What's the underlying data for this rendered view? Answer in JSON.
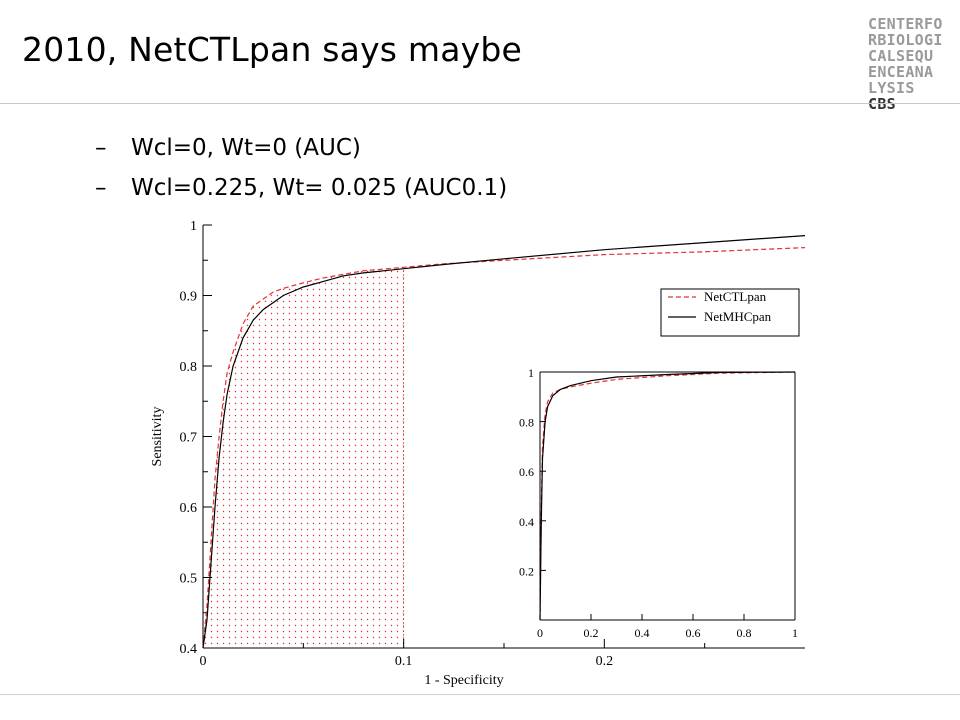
{
  "slide": {
    "title": "2010, NetCTLpan says maybe",
    "bullets": [
      {
        "dash": "–",
        "text": "Wcl=0, Wt=0 (AUC)"
      },
      {
        "dash": "–",
        "text": "Wcl=0.225, Wt= 0.025 (AUC0.1)"
      }
    ]
  },
  "logo": {
    "lines": [
      "CENTERFO",
      "RBIOLOGI",
      "CALSEQU",
      "ENCEANA"
    ],
    "last_line_prefix": "LYSIS",
    "last_line_brand": "CBS"
  },
  "chart_data": [
    {
      "type": "line",
      "xlabel": "1 - Specificity",
      "ylabel": "Sensitivity",
      "xlim": [
        0,
        0.3
      ],
      "ylim": [
        0.4,
        1.0
      ],
      "x_ticks": [
        0,
        0.1,
        0.2
      ],
      "x_tick_labels": [
        "0",
        "0.1",
        "0.2"
      ],
      "y_ticks": [
        0.4,
        0.5,
        0.6,
        0.7,
        0.8,
        0.9,
        1.0
      ],
      "y_tick_labels": [
        "0.4",
        "0.5",
        "0.6",
        "0.7",
        "0.8",
        "0.9",
        "1"
      ],
      "shaded_region": {
        "x_from": 0,
        "x_to": 0.1,
        "series": "NetCTLpan",
        "color": "#e53030"
      },
      "legend_position": "right",
      "series": [
        {
          "name": "NetCTLpan",
          "color": "#e53030",
          "style": "dashed",
          "x": [
            0.0,
            0.002,
            0.004,
            0.006,
            0.008,
            0.01,
            0.012,
            0.015,
            0.02,
            0.025,
            0.03,
            0.035,
            0.04,
            0.05,
            0.06,
            0.07,
            0.08,
            0.1,
            0.12,
            0.15,
            0.2,
            0.25,
            0.3
          ],
          "y": [
            0.4,
            0.46,
            0.55,
            0.64,
            0.7,
            0.75,
            0.79,
            0.82,
            0.86,
            0.885,
            0.895,
            0.905,
            0.91,
            0.918,
            0.925,
            0.93,
            0.935,
            0.94,
            0.945,
            0.95,
            0.958,
            0.962,
            0.968
          ]
        },
        {
          "name": "NetMHCpan",
          "color": "#000000",
          "style": "solid",
          "x": [
            0.0,
            0.002,
            0.004,
            0.006,
            0.008,
            0.01,
            0.012,
            0.015,
            0.02,
            0.025,
            0.03,
            0.035,
            0.04,
            0.05,
            0.06,
            0.07,
            0.08,
            0.1,
            0.12,
            0.15,
            0.2,
            0.25,
            0.3
          ],
          "y": [
            0.4,
            0.44,
            0.52,
            0.6,
            0.67,
            0.72,
            0.76,
            0.8,
            0.84,
            0.865,
            0.88,
            0.89,
            0.9,
            0.912,
            0.92,
            0.928,
            0.932,
            0.938,
            0.944,
            0.952,
            0.965,
            0.975,
            0.985
          ]
        }
      ]
    },
    {
      "type": "line",
      "xlim": [
        0,
        1
      ],
      "ylim": [
        0,
        1
      ],
      "x_ticks": [
        0,
        0.2,
        0.4,
        0.6,
        0.8,
        1
      ],
      "x_tick_labels": [
        "0",
        "0.2",
        "0.4",
        "0.6",
        "0.8",
        "1"
      ],
      "y_ticks": [
        0.2,
        0.4,
        0.6,
        0.8,
        1
      ],
      "y_tick_labels": [
        "0.2",
        "0.4",
        "0.6",
        "0.8",
        "1"
      ],
      "series": [
        {
          "name": "NetCTLpan",
          "color": "#e53030",
          "style": "dashed",
          "x": [
            0.0,
            0.005,
            0.01,
            0.02,
            0.03,
            0.05,
            0.08,
            0.12,
            0.2,
            0.3,
            0.5,
            0.7,
            1.0
          ],
          "y": [
            0.0,
            0.45,
            0.7,
            0.83,
            0.88,
            0.915,
            0.93,
            0.94,
            0.955,
            0.97,
            0.985,
            0.995,
            1.0
          ]
        },
        {
          "name": "NetMHCpan",
          "color": "#000000",
          "style": "solid",
          "x": [
            0.0,
            0.005,
            0.01,
            0.02,
            0.03,
            0.05,
            0.08,
            0.12,
            0.2,
            0.3,
            0.5,
            0.7,
            1.0
          ],
          "y": [
            0.0,
            0.4,
            0.65,
            0.8,
            0.86,
            0.905,
            0.93,
            0.945,
            0.965,
            0.98,
            0.99,
            0.998,
            1.0
          ]
        }
      ]
    }
  ]
}
